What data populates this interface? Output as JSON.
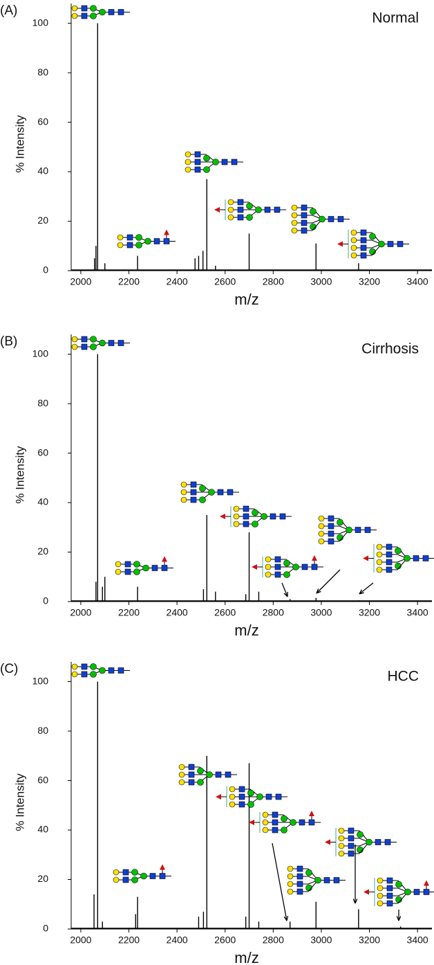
{
  "chart_data": [
    {
      "type": "spectrum",
      "panel": "(A)",
      "title": "Normal",
      "x_label": "m/z",
      "y_label": "% Intensity",
      "color": "#000000",
      "x": [
        2057,
        2063,
        2070,
        2100,
        2236,
        2475,
        2490,
        2508,
        2524,
        2560,
        2700,
        2978,
        3155
      ],
      "values": [
        5,
        10,
        100,
        3,
        6,
        5,
        6,
        8,
        37,
        2,
        15,
        11,
        3
      ],
      "xlim": [
        1960,
        3460
      ],
      "xticks": [
        2000,
        2200,
        2400,
        2600,
        2800,
        3000,
        3200,
        3400
      ],
      "ylim": [
        0,
        108
      ],
      "yticks": [
        0,
        20,
        40,
        60,
        80,
        100
      ]
    },
    {
      "type": "spectrum",
      "panel": "(B)",
      "title": "Cirrhosis",
      "x_label": "m/z",
      "y_label": "% Intensity",
      "color": "#000000",
      "x": [
        2063,
        2070,
        2090,
        2100,
        2236,
        2510,
        2524,
        2560,
        2686,
        2700,
        2740,
        2870,
        2978,
        3155
      ],
      "values": [
        8,
        100,
        6,
        10,
        6,
        5,
        35,
        4,
        3,
        28,
        4,
        1,
        1.5,
        0.5
      ],
      "xlim": [
        1960,
        3460
      ],
      "xticks": [
        2000,
        2200,
        2400,
        2600,
        2800,
        3000,
        3200,
        3400
      ],
      "ylim": [
        0,
        108
      ],
      "yticks": [
        0,
        20,
        40,
        60,
        80,
        100
      ]
    },
    {
      "type": "spectrum",
      "panel": "(C)",
      "title": "HCC",
      "x_label": "m/z",
      "y_label": "% Intensity",
      "color": "#000000",
      "x": [
        2055,
        2070,
        2090,
        2228,
        2236,
        2490,
        2510,
        2524,
        2686,
        2700,
        2740,
        2870,
        2978,
        3155,
        3330
      ],
      "values": [
        14,
        100,
        3,
        6,
        13,
        5,
        7,
        70,
        5,
        67,
        3,
        3,
        11,
        8,
        1
      ],
      "xlim": [
        1960,
        3460
      ],
      "xticks": [
        2000,
        2200,
        2400,
        2600,
        2800,
        3000,
        3200,
        3400
      ],
      "ylim": [
        0,
        108
      ],
      "yticks": [
        0,
        20,
        40,
        60,
        80,
        100
      ]
    }
  ]
}
